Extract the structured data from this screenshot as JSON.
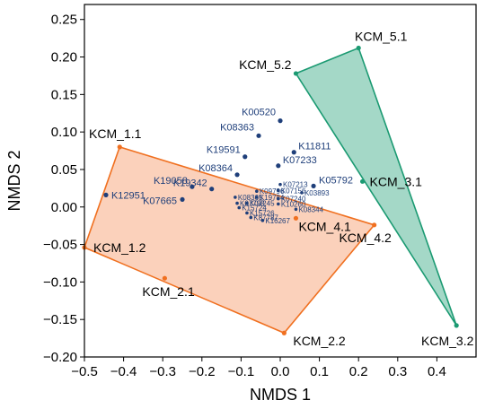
{
  "chart_data": {
    "type": "scatter",
    "xlabel": "NMDS 1",
    "ylabel": "NMDS 2",
    "xlim": [
      -0.5,
      0.5
    ],
    "ylim": [
      -0.2,
      0.27
    ],
    "xticks": [
      -0.5,
      -0.4,
      -0.3,
      -0.2,
      -0.1,
      0.0,
      0.1,
      0.2,
      0.3,
      0.4
    ],
    "yticks": [
      -0.2,
      -0.15,
      -0.1,
      -0.05,
      0.0,
      0.05,
      0.1,
      0.15,
      0.2,
      0.25
    ],
    "xtick_labels": [
      "−0.5",
      "−0.4",
      "−0.3",
      "−0.2",
      "−0.1",
      "0.0",
      "0.1",
      "0.2",
      "0.3",
      "0.4"
    ],
    "ytick_labels": [
      "−0.20",
      "−0.15",
      "−0.10",
      "−0.05",
      "0.00",
      "0.05",
      "0.10",
      "0.15",
      "0.20",
      "0.25"
    ],
    "grid": false,
    "groups": [
      {
        "color": "#f07020",
        "fill": "#fbcfb7",
        "hull": [
          "KCM_1.1",
          "KCM_4.2",
          "KCM_2.2",
          "KCM_1.2"
        ],
        "points": [
          {
            "label": "KCM_1.1",
            "x": -0.41,
            "y": 0.08
          },
          {
            "label": "KCM_1.2",
            "x": -0.5,
            "y": -0.054
          },
          {
            "label": "KCM_2.1",
            "x": -0.295,
            "y": -0.095
          },
          {
            "label": "KCM_2.2",
            "x": 0.01,
            "y": -0.168
          },
          {
            "label": "KCM_4.1",
            "x": 0.04,
            "y": -0.015
          },
          {
            "label": "KCM_4.2",
            "x": 0.24,
            "y": -0.024
          }
        ]
      },
      {
        "color": "#1b9a72",
        "fill": "#9fd6c4",
        "hull": [
          "KCM_5.2",
          "KCM_5.1",
          "KCM_3.2"
        ],
        "points": [
          {
            "label": "KCM_5.1",
            "x": 0.2,
            "y": 0.212
          },
          {
            "label": "KCM_5.2",
            "x": 0.04,
            "y": 0.178
          },
          {
            "label": "KCM_3.1",
            "x": 0.21,
            "y": 0.034
          },
          {
            "label": "KCM_3.2",
            "x": 0.45,
            "y": -0.158
          }
        ]
      }
    ],
    "ko_series": {
      "color": "#1f3f7a",
      "points": [
        {
          "label": "K00520",
          "x": 0.0,
          "y": 0.115,
          "size": "large"
        },
        {
          "label": "K08363",
          "x": -0.055,
          "y": 0.095,
          "size": "large"
        },
        {
          "label": "K11811",
          "x": 0.035,
          "y": 0.073,
          "size": "large"
        },
        {
          "label": "K19591",
          "x": -0.09,
          "y": 0.067,
          "size": "large"
        },
        {
          "label": "K07233",
          "x": -0.005,
          "y": 0.055,
          "size": "large"
        },
        {
          "label": "K08364",
          "x": -0.11,
          "y": 0.043,
          "size": "large"
        },
        {
          "label": "K05792",
          "x": 0.085,
          "y": 0.028,
          "size": "large"
        },
        {
          "label": "K12951",
          "x": -0.445,
          "y": 0.016,
          "size": "large"
        },
        {
          "label": "K19058",
          "x": -0.225,
          "y": 0.027,
          "size": "large"
        },
        {
          "label": "K19342",
          "x": -0.175,
          "y": 0.024,
          "size": "large"
        },
        {
          "label": "K07665",
          "x": -0.25,
          "y": 0.01,
          "size": "large"
        },
        {
          "label": "K07213",
          "x": 0.0,
          "y": 0.03,
          "size": "small"
        },
        {
          "label": "K09796",
          "x": -0.06,
          "y": 0.021,
          "size": "small"
        },
        {
          "label": "K07156",
          "x": -0.005,
          "y": 0.022,
          "size": "small"
        },
        {
          "label": "K03893",
          "x": 0.055,
          "y": 0.019,
          "size": "small"
        },
        {
          "label": "K08365",
          "x": -0.115,
          "y": 0.013,
          "size": "small"
        },
        {
          "label": "K19784",
          "x": -0.06,
          "y": 0.013,
          "size": "small"
        },
        {
          "label": "K07240",
          "x": -0.005,
          "y": 0.011,
          "size": "small"
        },
        {
          "label": "K07798",
          "x": -0.11,
          "y": 0.005,
          "size": "small"
        },
        {
          "label": "K07245",
          "x": -0.085,
          "y": 0.005,
          "size": "small"
        },
        {
          "label": "K10260",
          "x": -0.005,
          "y": 0.004,
          "size": "small"
        },
        {
          "label": "K15724",
          "x": -0.105,
          "y": -0.001,
          "size": "small"
        },
        {
          "label": "K08344",
          "x": 0.04,
          "y": -0.003,
          "size": "small"
        },
        {
          "label": "K15726",
          "x": -0.085,
          "y": -0.008,
          "size": "small"
        },
        {
          "label": "K16267",
          "x": -0.045,
          "y": -0.018,
          "size": "small"
        },
        {
          "label": "K87787",
          "x": -0.075,
          "y": -0.014,
          "size": "small"
        }
      ]
    }
  }
}
